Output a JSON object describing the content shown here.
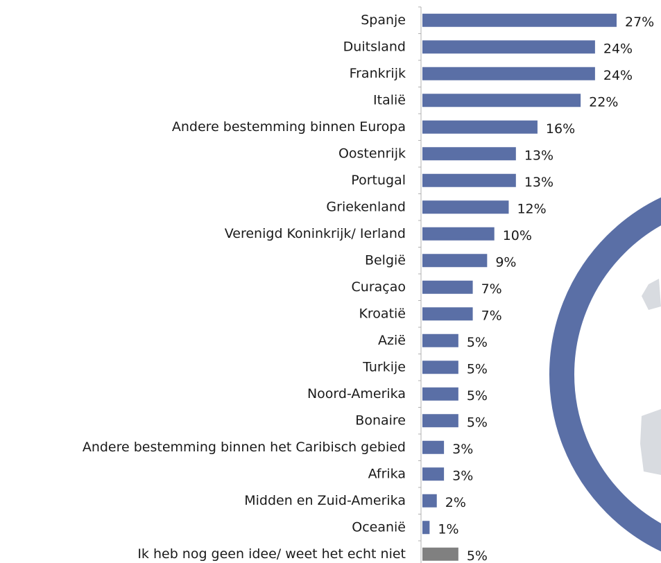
{
  "chart_data": {
    "type": "barh",
    "categories": [
      "Spanje",
      "Duitsland",
      "Frankrijk",
      "Italië",
      "Andere bestemming binnen Europa",
      "Oostenrijk",
      "Portugal",
      "Griekenland",
      "Verenigd Koninkrijk/ Ierland",
      "België",
      "Curaçao ",
      "Kroatië",
      "Azië",
      "Turkije",
      "Noord-Amerika",
      "Bonaire",
      "Andere bestemming binnen het Caribisch gebied",
      "Afrika",
      "Midden en Zuid-Amerika",
      "Oceanië",
      "Ik heb nog geen idee/ weet het echt niet"
    ],
    "values": [
      27,
      24,
      24,
      22,
      16,
      13,
      13,
      12,
      10,
      9,
      7,
      7,
      5,
      5,
      5,
      5,
      3,
      3,
      2,
      1,
      5
    ],
    "value_labels": [
      "27%",
      "24%",
      "24%",
      "22%",
      "16%",
      "13%",
      "13%",
      "12%",
      "10%",
      "9%",
      "7%",
      "7%",
      "5%",
      "5%",
      "5%",
      "5%",
      "3%",
      "3%",
      "2%",
      "1%",
      "5%"
    ],
    "colors": [
      "#5a6fa6",
      "#5a6fa6",
      "#5a6fa6",
      "#5a6fa6",
      "#5a6fa6",
      "#5a6fa6",
      "#5a6fa6",
      "#5a6fa6",
      "#5a6fa6",
      "#5a6fa6",
      "#5a6fa6",
      "#5a6fa6",
      "#5a6fa6",
      "#5a6fa6",
      "#5a6fa6",
      "#5a6fa6",
      "#5a6fa6",
      "#5a6fa6",
      "#5a6fa6",
      "#5a6fa6",
      "#808080"
    ]
  }
}
